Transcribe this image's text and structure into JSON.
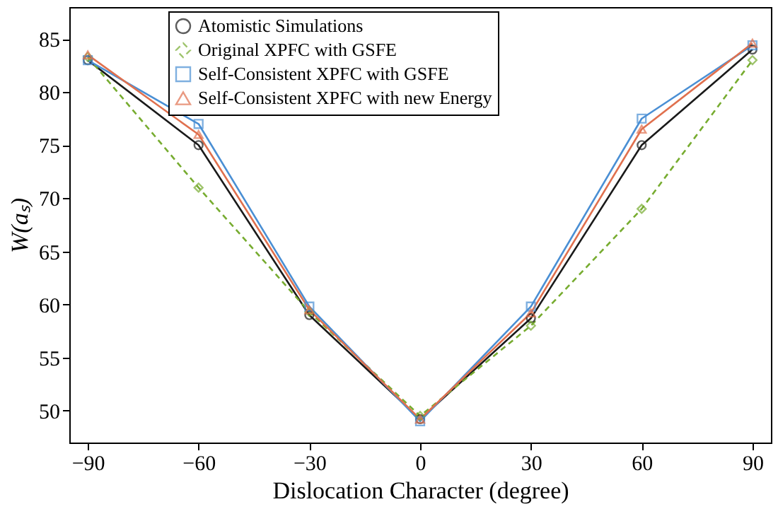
{
  "chart_data": {
    "type": "line",
    "xlabel": "Dislocation Character (degree)",
    "ylabel": "W(aₛ)",
    "x": [
      -90,
      -60,
      -30,
      0,
      30,
      60,
      90
    ],
    "series": [
      {
        "name": "Atomistic Simulations",
        "color": "#1a1a1a",
        "marker": "circle",
        "line_style": "solid",
        "values": [
          83,
          75,
          59,
          49.2,
          58.7,
          75,
          84
        ]
      },
      {
        "name": "Original XPFC with GSFE",
        "color": "#77ac30",
        "marker": "diamond",
        "line_style": "dashed",
        "values": [
          83.3,
          71,
          59.3,
          49.5,
          58,
          69,
          83
        ]
      },
      {
        "name": "Self-Consistent XPFC with GSFE",
        "color": "#4a8fd4",
        "marker": "square",
        "line_style": "solid",
        "values": [
          83,
          77,
          59.8,
          49,
          59.8,
          77.5,
          84.4
        ]
      },
      {
        "name": "Self-Consistent XPFC with new Energy",
        "color": "#e0704e",
        "marker": "triangle",
        "line_style": "solid",
        "values": [
          83.5,
          76,
          59.5,
          49.2,
          59.2,
          76.5,
          84.6
        ]
      }
    ],
    "xlim": [
      -95,
      95
    ],
    "ylim": [
      47,
      88
    ],
    "xticks": [
      -90,
      -60,
      -30,
      0,
      30,
      60,
      90
    ],
    "yticks": [
      50,
      55,
      60,
      65,
      70,
      75,
      80,
      85
    ],
    "grid": false,
    "legend": "top"
  }
}
